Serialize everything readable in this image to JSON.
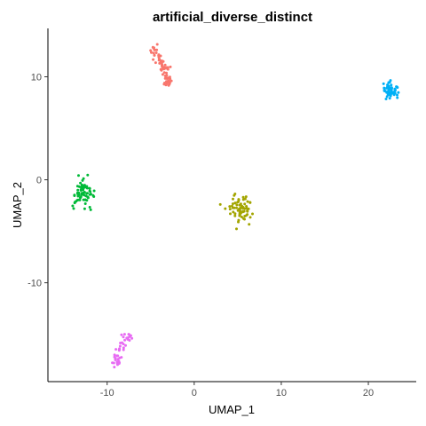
{
  "chart_data": {
    "type": "scatter",
    "title": "artificial_diverse_distinct",
    "xlabel": "UMAP_1",
    "ylabel": "UMAP_2",
    "xlim": [
      -16.8,
      25.5
    ],
    "ylim": [
      -19.6,
      14.7
    ],
    "xticks": [
      -10,
      0,
      10,
      20
    ],
    "yticks": [
      -10,
      0,
      10
    ],
    "xtick_labels": [
      "-10",
      "0",
      "10",
      "20"
    ],
    "ytick_labels": [
      "-10",
      "0",
      "10"
    ],
    "grid": false,
    "legend": "none",
    "series": [
      {
        "color": "#F8766D",
        "center": [
          -3.5,
          10.8
        ],
        "spread": [
          1.0,
          1.6
        ],
        "n": 70,
        "shape": "elongated",
        "path": [
          [
            -4.9,
            12.9
          ],
          [
            -4.3,
            12.0
          ],
          [
            -3.6,
            11.0
          ],
          [
            -3.1,
            10.0
          ],
          [
            -2.8,
            9.1
          ]
        ]
      },
      {
        "color": "#00BA38",
        "center": [
          -12.8,
          -1.3
        ],
        "spread": [
          0.9,
          0.9
        ],
        "n": 70
      },
      {
        "color": "#A3A500",
        "center": [
          5.3,
          -2.9
        ],
        "spread": [
          0.8,
          0.9
        ],
        "n": 70
      },
      {
        "color": "#00B0F6",
        "center": [
          22.6,
          8.7
        ],
        "spread": [
          0.6,
          0.5
        ],
        "n": 60
      },
      {
        "color": "#E76BF3",
        "center": [
          -8.8,
          -16.8
        ],
        "spread": [
          0.6,
          0.9
        ],
        "n": 45,
        "shape": "elongated",
        "path": [
          [
            -7.5,
            -15.0
          ],
          [
            -8.0,
            -15.6
          ],
          [
            -8.7,
            -16.8
          ],
          [
            -9.0,
            -17.6
          ],
          [
            -8.6,
            -18.1
          ]
        ]
      }
    ]
  }
}
